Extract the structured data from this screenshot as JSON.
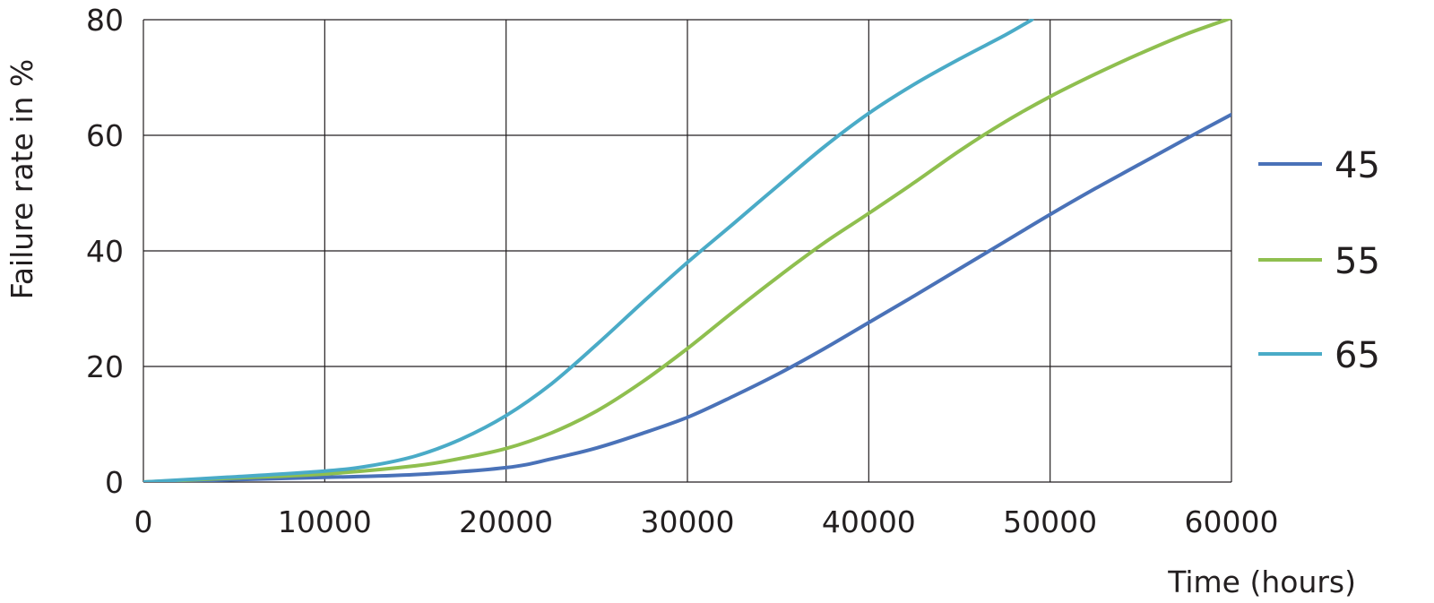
{
  "chart_data": {
    "type": "line",
    "xlabel": "Time (hours)",
    "ylabel": "Failure rate in %",
    "xlim": [
      0,
      60000
    ],
    "ylim": [
      0,
      80
    ],
    "xticks": [
      "0",
      "10000",
      "20000",
      "30000",
      "40000",
      "50000",
      "60000"
    ],
    "yticks": [
      "0",
      "20",
      "40",
      "60",
      "80"
    ],
    "grid": true,
    "legend_position": "right",
    "series": [
      {
        "name": "45",
        "color": "#4a72b8",
        "x": [
          0,
          5000,
          10000,
          15000,
          20000,
          22500,
          25000,
          27500,
          30000,
          32500,
          35000,
          37500,
          40000,
          42500,
          45000,
          47500,
          50000,
          52500,
          55000,
          57500,
          60000
        ],
        "y": [
          0,
          0.4,
          0.8,
          1.3,
          2.5,
          4.0,
          5.9,
          8.4,
          11.2,
          14.8,
          18.7,
          23.0,
          27.6,
          32.2,
          36.9,
          41.6,
          46.3,
          50.8,
          55.1,
          59.4,
          63.6
        ]
      },
      {
        "name": "55",
        "color": "#8fbf4f",
        "x": [
          0,
          5000,
          10000,
          15000,
          17500,
          20000,
          22500,
          25000,
          27500,
          30000,
          32500,
          35000,
          37500,
          40000,
          42500,
          45000,
          47500,
          50000,
          52500,
          55000,
          57500,
          60000
        ],
        "y": [
          0,
          0.7,
          1.4,
          2.8,
          4.1,
          5.8,
          8.5,
          12.3,
          17.3,
          23.1,
          29.4,
          35.5,
          41.3,
          46.5,
          51.8,
          57.3,
          62.3,
          66.7,
          70.6,
          74.2,
          77.5,
          80.3
        ]
      },
      {
        "name": "65",
        "color": "#4aabc7",
        "x": [
          0,
          5000,
          10000,
          12500,
          15000,
          17500,
          20000,
          22500,
          25000,
          27500,
          30000,
          32500,
          35000,
          37500,
          40000,
          42500,
          45000,
          47500,
          49000
        ],
        "y": [
          0,
          0.9,
          1.9,
          2.8,
          4.5,
          7.4,
          11.5,
          17.0,
          23.8,
          31.0,
          38.0,
          44.6,
          51.3,
          57.9,
          63.8,
          68.8,
          73.2,
          77.3,
          80.0
        ]
      }
    ]
  }
}
